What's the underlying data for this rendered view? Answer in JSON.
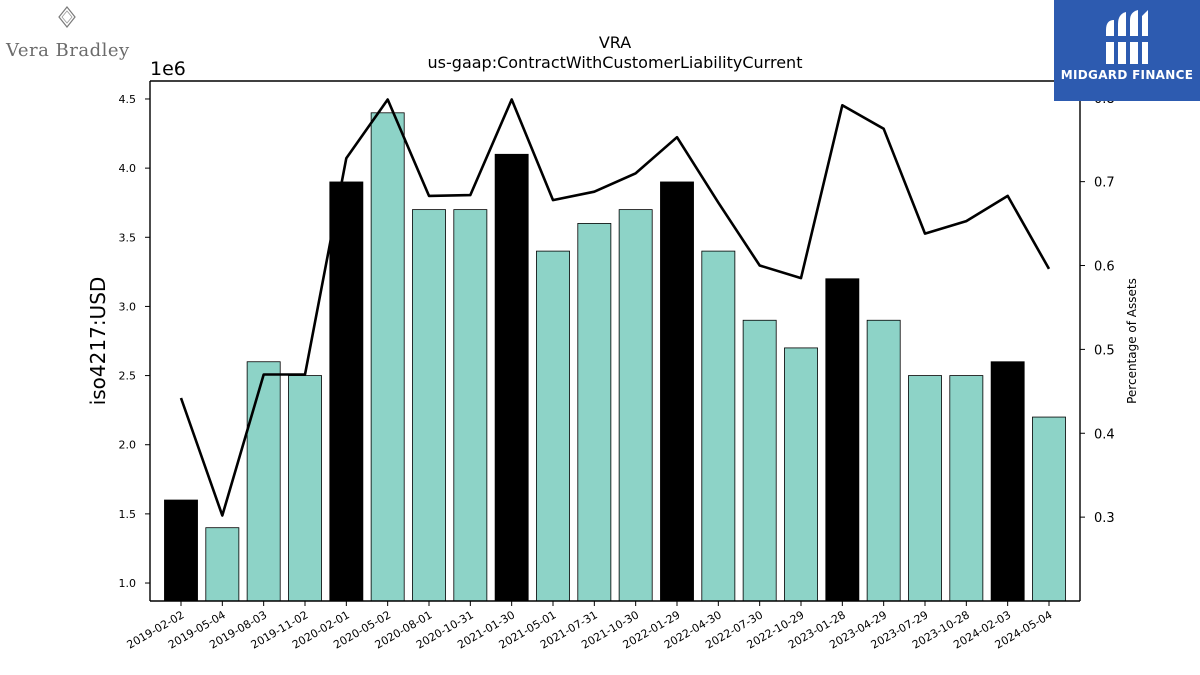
{
  "chart_data": {
    "type": "bar",
    "title": "VRA",
    "subtitle": "us-gaap:ContractWithCustomerLiabilityCurrent",
    "ylabel": "iso4217:USD",
    "y_offset_label": "1e6",
    "y2label": "Percentage of Assets",
    "categories": [
      "2019-02-02",
      "2019-05-04",
      "2019-08-03",
      "2019-11-02",
      "2020-02-01",
      "2020-05-02",
      "2020-08-01",
      "2020-10-31",
      "2021-01-30",
      "2021-05-01",
      "2021-07-31",
      "2021-10-30",
      "2022-01-29",
      "2022-04-30",
      "2022-07-30",
      "2022-10-29",
      "2023-01-28",
      "2023-04-29",
      "2023-07-29",
      "2023-10-28",
      "2024-02-03",
      "2024-05-04"
    ],
    "bar_values": [
      1600000,
      1400000,
      2600000,
      2500000,
      3900000,
      4400000,
      3700000,
      3700000,
      4100000,
      3400000,
      3600000,
      3700000,
      3900000,
      3400000,
      2900000,
      2700000,
      3200000,
      2900000,
      2500000,
      2500000,
      2600000,
      2200000
    ],
    "highlight_dates": [
      "2019-02-02",
      "2020-02-01",
      "2021-01-30",
      "2022-01-29",
      "2023-01-28",
      "2024-02-03"
    ],
    "line_values": [
      0.442,
      0.302,
      0.47,
      0.47,
      0.728,
      0.798,
      0.683,
      0.684,
      0.798,
      0.678,
      0.688,
      0.71,
      0.753,
      0.675,
      0.6,
      0.585,
      0.791,
      0.763,
      0.638,
      0.653,
      0.683,
      0.596
    ],
    "ylim": [
      870000,
      4630000
    ],
    "y2lim": [
      0.2,
      0.82
    ],
    "yticks": [
      1.0,
      1.5,
      2.0,
      2.5,
      3.0,
      3.5,
      4.0,
      4.5
    ],
    "y2ticks": [
      0.3,
      0.4,
      0.5,
      0.6,
      0.7,
      0.8
    ],
    "colors": {
      "bar": "#8dd3c7",
      "highlight": "#000000",
      "line": "#000000",
      "edge": "#000000"
    }
  },
  "logos": {
    "left_text": "Vera Bradley",
    "right_text": "MIDGARD FINANCE",
    "right_bg": "#2d5bb0"
  }
}
